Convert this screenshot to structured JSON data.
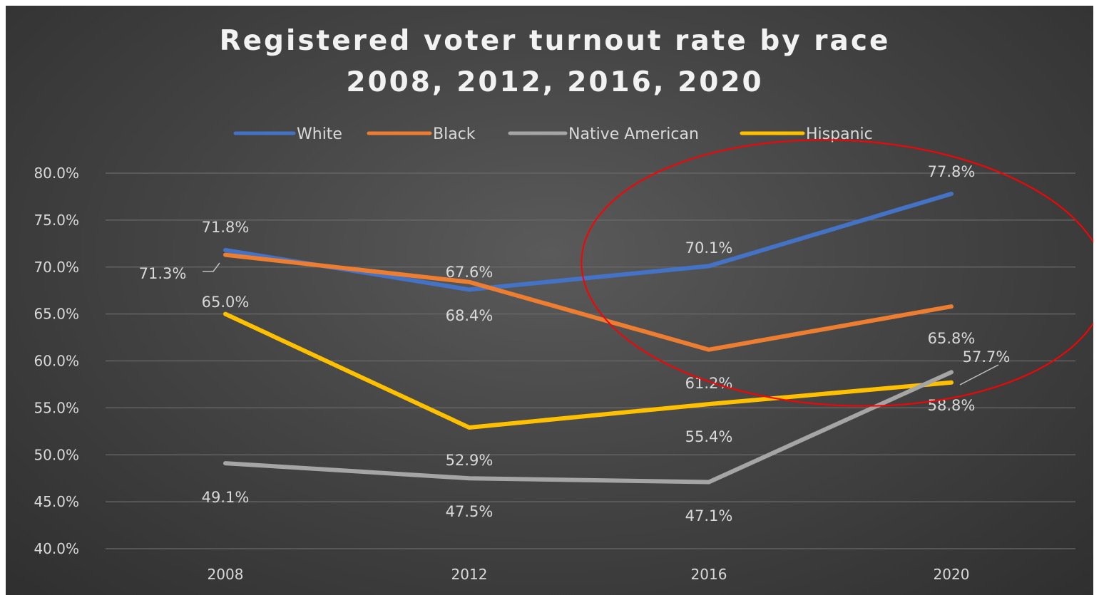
{
  "chart_data": {
    "type": "line",
    "title": "Registered voter turnout rate by race",
    "subtitle": "2008, 2012, 2016, 2020",
    "categories": [
      "2008",
      "2012",
      "2016",
      "2020"
    ],
    "ylim": [
      0.4,
      0.8
    ],
    "yticks": [
      "80.0%",
      "75.0%",
      "70.0%",
      "65.0%",
      "60.0%",
      "55.0%",
      "50.0%",
      "45.0%",
      "40.0%"
    ],
    "ytick_values": [
      0.8,
      0.75,
      0.7,
      0.65,
      0.6,
      0.55,
      0.5,
      0.45,
      0.4
    ],
    "grid": true,
    "legend_position": "top",
    "series": [
      {
        "name": "White",
        "color": "#4472c4",
        "values": [
          0.718,
          0.676,
          0.701,
          0.778
        ],
        "labels": [
          "71.8%",
          "67.6%",
          "70.1%",
          "77.8%"
        ]
      },
      {
        "name": "Black",
        "color": "#ed7d31",
        "values": [
          0.713,
          0.684,
          0.612,
          0.658
        ],
        "labels": [
          "71.3%",
          "68.4%",
          "61.2%",
          "65.8%"
        ]
      },
      {
        "name": "Native American",
        "color": "#a5a5a5",
        "values": [
          0.491,
          0.475,
          0.471,
          0.588
        ],
        "labels": [
          "49.1%",
          "47.5%",
          "47.1%",
          "58.8%"
        ]
      },
      {
        "name": "Hispanic",
        "color": "#ffc000",
        "values": [
          0.65,
          0.529,
          0.554,
          0.577
        ],
        "labels": [
          "65.0%",
          "52.9%",
          "55.4%",
          "57.7%"
        ]
      }
    ],
    "annotations": [
      {
        "type": "ellipse",
        "color": "#ff0000",
        "description": "highlights 2016-2020 segment"
      }
    ]
  }
}
